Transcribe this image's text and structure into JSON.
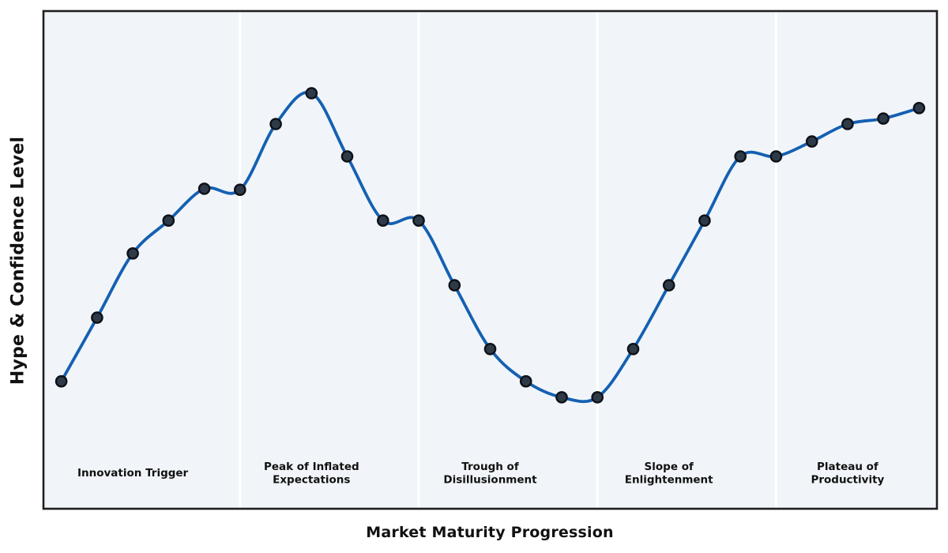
{
  "chart_data": {
    "type": "line",
    "title": "",
    "xlabel": "Market Maturity Progression",
    "ylabel": "Hype & Confidence Level",
    "x": [
      0,
      1,
      2,
      3,
      4,
      5,
      6,
      7,
      8,
      9,
      10,
      11,
      12,
      13,
      14,
      15,
      16,
      17,
      18,
      19,
      20,
      21,
      22,
      23,
      24
    ],
    "series": [
      {
        "name": "hype-curve",
        "values": [
          25.6,
          38.4,
          51.3,
          57.9,
          64.3,
          64.1,
          77.3,
          83.5,
          70.8,
          57.9,
          57.9,
          44.9,
          32.1,
          25.6,
          22.4,
          22.4,
          32.1,
          44.9,
          57.9,
          70.8,
          70.8,
          73.8,
          77.3,
          78.4,
          80.5
        ]
      }
    ],
    "xlim": [
      -0.5,
      24.5
    ],
    "ylim": [
      0,
      100
    ],
    "grid": false,
    "legend": false,
    "axis_ticks": "none",
    "marker": "circle",
    "phases": [
      {
        "lines": [
          "Innovation Trigger"
        ],
        "center_x": 2
      },
      {
        "lines": [
          "Peak of Inflated",
          "Expectations"
        ],
        "center_x": 7
      },
      {
        "lines": [
          "Trough of",
          "Disillusionment"
        ],
        "center_x": 12
      },
      {
        "lines": [
          "Slope of",
          "Enlightenment"
        ],
        "center_x": 17
      },
      {
        "lines": [
          "Plateau of",
          "Productivity"
        ],
        "center_x": 22
      }
    ],
    "phase_divider_x": [
      5,
      10,
      15,
      20
    ],
    "phase_label_y": 7.2,
    "colors": {
      "line": "#1560b2",
      "marker_fill": "#2e3a48",
      "marker_edge": "#0d1117",
      "plot_background": "#f1f5f9",
      "divider": "#ffffff",
      "spine": "#1f1f1f",
      "text": "#111111",
      "figure_background": "#ffffff"
    }
  }
}
